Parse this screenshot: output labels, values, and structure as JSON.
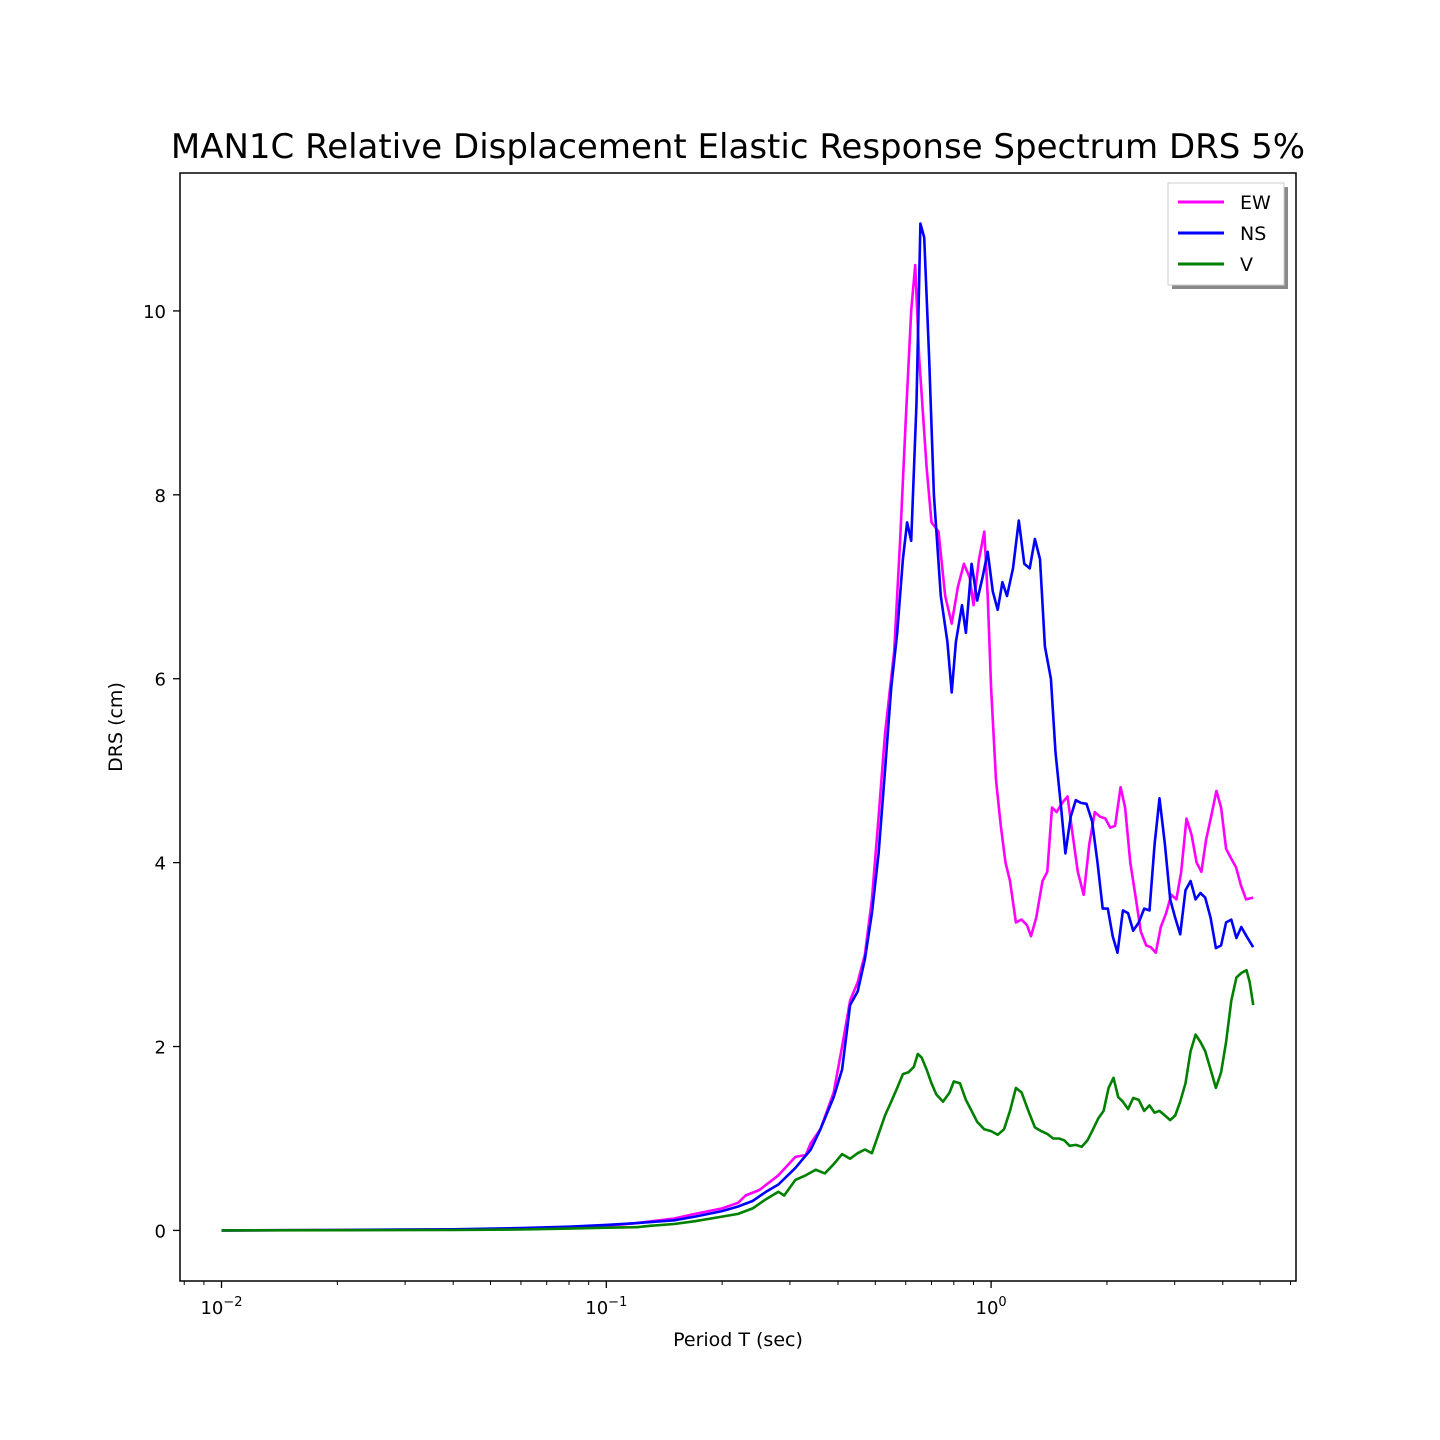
{
  "chart_data": {
    "type": "line",
    "title": "MAN1C Relative Displacement Elastic Response Spectrum DRS 5%",
    "xlabel": "Period T (sec)",
    "ylabel": "DRS (cm)",
    "xscale": "log",
    "xlim": [
      0.0078,
      6.2
    ],
    "ylim": [
      -0.55,
      11.5
    ],
    "x_ticks": [
      {
        "value": 0.01,
        "base": "10",
        "exp": "−2"
      },
      {
        "value": 0.1,
        "base": "10",
        "exp": "−1"
      },
      {
        "value": 1,
        "base": "10",
        "exp": "0"
      }
    ],
    "y_ticks": [
      0,
      2,
      4,
      6,
      8,
      10
    ],
    "grid": false,
    "legend_position": "top-right",
    "series": [
      {
        "name": "EW",
        "color": "#ff00ff",
        "points": [
          [
            0.01,
            0
          ],
          [
            0.02,
            0.005
          ],
          [
            0.04,
            0.01
          ],
          [
            0.06,
            0.02
          ],
          [
            0.08,
            0.035
          ],
          [
            0.1,
            0.05
          ],
          [
            0.12,
            0.08
          ],
          [
            0.15,
            0.13
          ],
          [
            0.17,
            0.18
          ],
          [
            0.2,
            0.24
          ],
          [
            0.22,
            0.3
          ],
          [
            0.23,
            0.38
          ],
          [
            0.25,
            0.44
          ],
          [
            0.28,
            0.6
          ],
          [
            0.31,
            0.8
          ],
          [
            0.33,
            0.82
          ],
          [
            0.34,
            0.95
          ],
          [
            0.36,
            1.1
          ],
          [
            0.39,
            1.5
          ],
          [
            0.41,
            2.0
          ],
          [
            0.43,
            2.5
          ],
          [
            0.45,
            2.7
          ],
          [
            0.47,
            3.0
          ],
          [
            0.49,
            3.6
          ],
          [
            0.51,
            4.5
          ],
          [
            0.53,
            5.4
          ],
          [
            0.56,
            6.3
          ],
          [
            0.58,
            7.5
          ],
          [
            0.6,
            8.8
          ],
          [
            0.62,
            10.0
          ],
          [
            0.635,
            10.5
          ],
          [
            0.65,
            9.5
          ],
          [
            0.68,
            8.3
          ],
          [
            0.7,
            7.7
          ],
          [
            0.73,
            7.6
          ],
          [
            0.76,
            6.9
          ],
          [
            0.79,
            6.6
          ],
          [
            0.82,
            7.0
          ],
          [
            0.85,
            7.25
          ],
          [
            0.88,
            7.1
          ],
          [
            0.9,
            6.8
          ],
          [
            0.93,
            7.3
          ],
          [
            0.96,
            7.6
          ],
          [
            0.98,
            6.9
          ],
          [
            1.0,
            5.9
          ],
          [
            1.03,
            4.9
          ],
          [
            1.06,
            4.4
          ],
          [
            1.09,
            4.0
          ],
          [
            1.12,
            3.8
          ],
          [
            1.16,
            3.35
          ],
          [
            1.2,
            3.38
          ],
          [
            1.24,
            3.32
          ],
          [
            1.27,
            3.2
          ],
          [
            1.31,
            3.4
          ],
          [
            1.36,
            3.8
          ],
          [
            1.4,
            3.9
          ],
          [
            1.44,
            4.6
          ],
          [
            1.48,
            4.55
          ],
          [
            1.53,
            4.65
          ],
          [
            1.58,
            4.72
          ],
          [
            1.63,
            4.3
          ],
          [
            1.68,
            3.9
          ],
          [
            1.74,
            3.65
          ],
          [
            1.8,
            4.2
          ],
          [
            1.86,
            4.55
          ],
          [
            1.92,
            4.5
          ],
          [
            1.98,
            4.48
          ],
          [
            2.04,
            4.38
          ],
          [
            2.1,
            4.4
          ],
          [
            2.17,
            4.82
          ],
          [
            2.23,
            4.6
          ],
          [
            2.3,
            4.0
          ],
          [
            2.38,
            3.6
          ],
          [
            2.45,
            3.25
          ],
          [
            2.53,
            3.1
          ],
          [
            2.6,
            3.08
          ],
          [
            2.68,
            3.02
          ],
          [
            2.76,
            3.3
          ],
          [
            2.85,
            3.45
          ],
          [
            2.94,
            3.65
          ],
          [
            3.03,
            3.6
          ],
          [
            3.12,
            3.9
          ],
          [
            3.22,
            4.48
          ],
          [
            3.32,
            4.3
          ],
          [
            3.42,
            4.0
          ],
          [
            3.52,
            3.9
          ],
          [
            3.62,
            4.25
          ],
          [
            3.73,
            4.5
          ],
          [
            3.85,
            4.78
          ],
          [
            3.96,
            4.6
          ],
          [
            4.08,
            4.15
          ],
          [
            4.2,
            4.05
          ],
          [
            4.33,
            3.95
          ],
          [
            4.46,
            3.75
          ],
          [
            4.6,
            3.6
          ],
          [
            4.8,
            3.62
          ]
        ]
      },
      {
        "name": "NS",
        "color": "#0000ff",
        "points": [
          [
            0.01,
            0
          ],
          [
            0.02,
            0.005
          ],
          [
            0.04,
            0.012
          ],
          [
            0.06,
            0.025
          ],
          [
            0.08,
            0.04
          ],
          [
            0.1,
            0.06
          ],
          [
            0.12,
            0.08
          ],
          [
            0.15,
            0.11
          ],
          [
            0.17,
            0.15
          ],
          [
            0.2,
            0.21
          ],
          [
            0.22,
            0.26
          ],
          [
            0.24,
            0.32
          ],
          [
            0.26,
            0.42
          ],
          [
            0.28,
            0.5
          ],
          [
            0.31,
            0.68
          ],
          [
            0.34,
            0.88
          ],
          [
            0.36,
            1.1
          ],
          [
            0.39,
            1.45
          ],
          [
            0.41,
            1.75
          ],
          [
            0.43,
            2.45
          ],
          [
            0.45,
            2.6
          ],
          [
            0.47,
            2.95
          ],
          [
            0.49,
            3.45
          ],
          [
            0.51,
            4.1
          ],
          [
            0.53,
            5.0
          ],
          [
            0.55,
            5.9
          ],
          [
            0.57,
            6.5
          ],
          [
            0.59,
            7.3
          ],
          [
            0.605,
            7.7
          ],
          [
            0.62,
            7.5
          ],
          [
            0.64,
            9.0
          ],
          [
            0.655,
            10.95
          ],
          [
            0.67,
            10.8
          ],
          [
            0.69,
            9.5
          ],
          [
            0.71,
            8.0
          ],
          [
            0.74,
            6.9
          ],
          [
            0.77,
            6.4
          ],
          [
            0.79,
            5.85
          ],
          [
            0.81,
            6.4
          ],
          [
            0.84,
            6.8
          ],
          [
            0.86,
            6.5
          ],
          [
            0.89,
            7.25
          ],
          [
            0.92,
            6.85
          ],
          [
            0.95,
            7.1
          ],
          [
            0.98,
            7.38
          ],
          [
            1.01,
            6.95
          ],
          [
            1.04,
            6.75
          ],
          [
            1.07,
            7.05
          ],
          [
            1.1,
            6.9
          ],
          [
            1.14,
            7.2
          ],
          [
            1.18,
            7.72
          ],
          [
            1.22,
            7.25
          ],
          [
            1.26,
            7.2
          ],
          [
            1.3,
            7.52
          ],
          [
            1.34,
            7.3
          ],
          [
            1.38,
            6.35
          ],
          [
            1.43,
            6.0
          ],
          [
            1.47,
            5.2
          ],
          [
            1.52,
            4.6
          ],
          [
            1.56,
            4.1
          ],
          [
            1.61,
            4.5
          ],
          [
            1.66,
            4.68
          ],
          [
            1.71,
            4.65
          ],
          [
            1.77,
            4.64
          ],
          [
            1.83,
            4.45
          ],
          [
            1.89,
            4.0
          ],
          [
            1.95,
            3.5
          ],
          [
            2.01,
            3.5
          ],
          [
            2.07,
            3.2
          ],
          [
            2.13,
            3.02
          ],
          [
            2.2,
            3.48
          ],
          [
            2.27,
            3.45
          ],
          [
            2.34,
            3.26
          ],
          [
            2.42,
            3.35
          ],
          [
            2.5,
            3.5
          ],
          [
            2.58,
            3.48
          ],
          [
            2.66,
            4.2
          ],
          [
            2.74,
            4.7
          ],
          [
            2.83,
            4.2
          ],
          [
            2.92,
            3.6
          ],
          [
            3.01,
            3.4
          ],
          [
            3.1,
            3.22
          ],
          [
            3.2,
            3.7
          ],
          [
            3.3,
            3.8
          ],
          [
            3.4,
            3.6
          ],
          [
            3.5,
            3.67
          ],
          [
            3.6,
            3.62
          ],
          [
            3.72,
            3.4
          ],
          [
            3.84,
            3.07
          ],
          [
            3.96,
            3.1
          ],
          [
            4.08,
            3.35
          ],
          [
            4.21,
            3.38
          ],
          [
            4.34,
            3.18
          ],
          [
            4.47,
            3.3
          ],
          [
            4.61,
            3.2
          ],
          [
            4.8,
            3.08
          ]
        ]
      },
      {
        "name": "V",
        "color": "#008000",
        "points": [
          [
            0.01,
            0
          ],
          [
            0.02,
            0.002
          ],
          [
            0.04,
            0.005
          ],
          [
            0.06,
            0.01
          ],
          [
            0.08,
            0.02
          ],
          [
            0.1,
            0.03
          ],
          [
            0.12,
            0.035
          ],
          [
            0.13,
            0.05
          ],
          [
            0.15,
            0.07
          ],
          [
            0.17,
            0.1
          ],
          [
            0.2,
            0.15
          ],
          [
            0.22,
            0.18
          ],
          [
            0.24,
            0.24
          ],
          [
            0.26,
            0.34
          ],
          [
            0.28,
            0.42
          ],
          [
            0.29,
            0.38
          ],
          [
            0.31,
            0.55
          ],
          [
            0.33,
            0.6
          ],
          [
            0.35,
            0.66
          ],
          [
            0.37,
            0.62
          ],
          [
            0.39,
            0.72
          ],
          [
            0.41,
            0.83
          ],
          [
            0.43,
            0.78
          ],
          [
            0.45,
            0.84
          ],
          [
            0.47,
            0.88
          ],
          [
            0.49,
            0.84
          ],
          [
            0.51,
            1.05
          ],
          [
            0.53,
            1.25
          ],
          [
            0.55,
            1.4
          ],
          [
            0.57,
            1.55
          ],
          [
            0.59,
            1.7
          ],
          [
            0.61,
            1.72
          ],
          [
            0.63,
            1.78
          ],
          [
            0.645,
            1.92
          ],
          [
            0.66,
            1.88
          ],
          [
            0.68,
            1.75
          ],
          [
            0.7,
            1.6
          ],
          [
            0.72,
            1.48
          ],
          [
            0.75,
            1.4
          ],
          [
            0.78,
            1.5
          ],
          [
            0.8,
            1.62
          ],
          [
            0.83,
            1.6
          ],
          [
            0.86,
            1.42
          ],
          [
            0.89,
            1.3
          ],
          [
            0.92,
            1.18
          ],
          [
            0.96,
            1.1
          ],
          [
            1.0,
            1.08
          ],
          [
            1.04,
            1.04
          ],
          [
            1.08,
            1.1
          ],
          [
            1.12,
            1.3
          ],
          [
            1.16,
            1.55
          ],
          [
            1.2,
            1.5
          ],
          [
            1.25,
            1.3
          ],
          [
            1.3,
            1.12
          ],
          [
            1.35,
            1.08
          ],
          [
            1.4,
            1.05
          ],
          [
            1.45,
            1.0
          ],
          [
            1.5,
            1.0
          ],
          [
            1.55,
            0.98
          ],
          [
            1.6,
            0.92
          ],
          [
            1.66,
            0.93
          ],
          [
            1.72,
            0.91
          ],
          [
            1.78,
            0.98
          ],
          [
            1.84,
            1.1
          ],
          [
            1.9,
            1.22
          ],
          [
            1.96,
            1.3
          ],
          [
            2.02,
            1.55
          ],
          [
            2.08,
            1.66
          ],
          [
            2.14,
            1.45
          ],
          [
            2.2,
            1.4
          ],
          [
            2.27,
            1.32
          ],
          [
            2.34,
            1.44
          ],
          [
            2.42,
            1.42
          ],
          [
            2.5,
            1.3
          ],
          [
            2.58,
            1.36
          ],
          [
            2.66,
            1.28
          ],
          [
            2.74,
            1.3
          ],
          [
            2.83,
            1.25
          ],
          [
            2.92,
            1.2
          ],
          [
            3.01,
            1.25
          ],
          [
            3.1,
            1.4
          ],
          [
            3.2,
            1.6
          ],
          [
            3.3,
            1.95
          ],
          [
            3.4,
            2.13
          ],
          [
            3.5,
            2.05
          ],
          [
            3.6,
            1.95
          ],
          [
            3.72,
            1.75
          ],
          [
            3.84,
            1.55
          ],
          [
            3.96,
            1.72
          ],
          [
            4.08,
            2.05
          ],
          [
            4.21,
            2.5
          ],
          [
            4.34,
            2.75
          ],
          [
            4.47,
            2.8
          ],
          [
            4.61,
            2.83
          ],
          [
            4.7,
            2.7
          ],
          [
            4.8,
            2.45
          ]
        ]
      }
    ]
  }
}
